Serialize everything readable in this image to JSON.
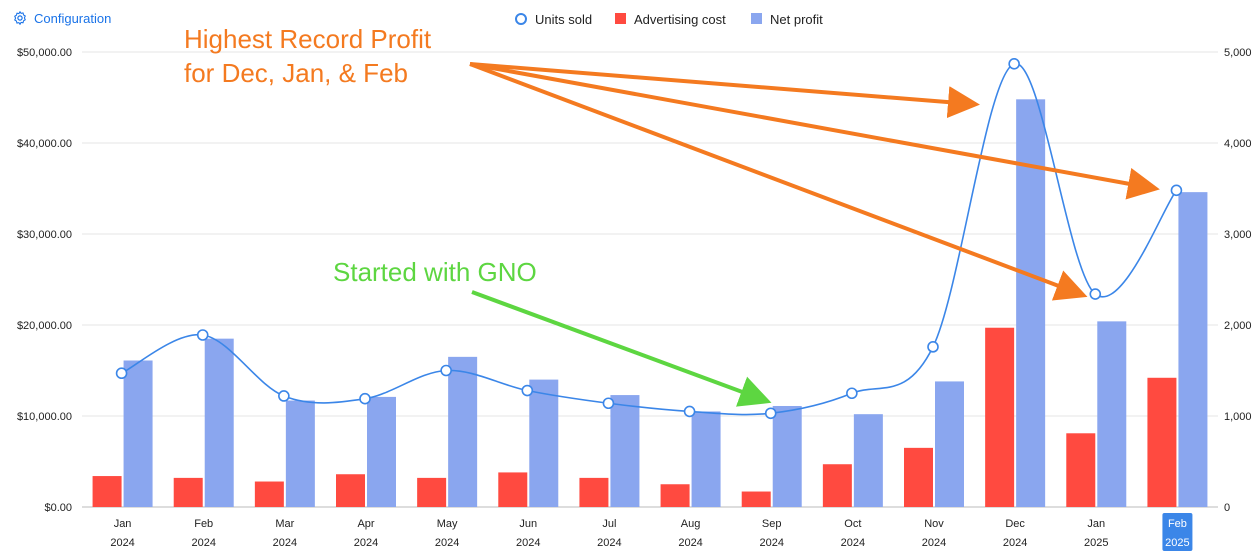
{
  "toolbar": {
    "config_label": "Configuration",
    "config_icon": "gear-icon"
  },
  "colors": {
    "units": "#3b86e8",
    "advertising": "#ff4a40",
    "profit": "#8aa6ef",
    "orange_annotation": "#f47a20",
    "green_annotation": "#5dd641",
    "selected_label_bg": "#3b86e8"
  },
  "annotations": {
    "orange_line1": "Highest Record Profit",
    "orange_line2": "for Dec, Jan, & Feb",
    "green": "Started with GNO"
  },
  "chart_data": {
    "type": "bar",
    "categories": [
      {
        "month": "Jan",
        "year": "2024"
      },
      {
        "month": "Feb",
        "year": "2024"
      },
      {
        "month": "Mar",
        "year": "2024"
      },
      {
        "month": "Apr",
        "year": "2024"
      },
      {
        "month": "May",
        "year": "2024"
      },
      {
        "month": "Jun",
        "year": "2024"
      },
      {
        "month": "Jul",
        "year": "2024"
      },
      {
        "month": "Aug",
        "year": "2024"
      },
      {
        "month": "Sep",
        "year": "2024"
      },
      {
        "month": "Oct",
        "year": "2024"
      },
      {
        "month": "Nov",
        "year": "2024"
      },
      {
        "month": "Dec",
        "year": "2024"
      },
      {
        "month": "Jan",
        "year": "2025"
      },
      {
        "month": "Feb",
        "year": "2025"
      }
    ],
    "selected_category_index": 13,
    "series": [
      {
        "name": "Advertising cost",
        "kind": "bar",
        "axis": "left",
        "values": [
          3400,
          3200,
          2800,
          3600,
          3200,
          3800,
          3200,
          2500,
          1700,
          4700,
          6500,
          19700,
          8100,
          14200
        ]
      },
      {
        "name": "Net profit",
        "kind": "bar",
        "axis": "left",
        "values": [
          16100,
          18500,
          11700,
          12100,
          16500,
          14000,
          12300,
          10500,
          11100,
          10200,
          13800,
          44800,
          20400,
          34600
        ]
      },
      {
        "name": "Units sold",
        "kind": "line",
        "axis": "right",
        "values": [
          1470,
          1890,
          1220,
          1190,
          1500,
          1280,
          1140,
          1050,
          1030,
          1250,
          1760,
          4870,
          2340,
          3480
        ]
      }
    ],
    "legend_order": [
      "Units sold",
      "Advertising cost",
      "Net profit"
    ],
    "legend_position": "top-center",
    "y_left": {
      "min": 0,
      "max": 50000,
      "ticks": [
        "$0.00",
        "$10,000.00",
        "$20,000.00",
        "$30,000.00",
        "$40,000.00",
        "$50,000.00"
      ]
    },
    "y_right": {
      "min": 0,
      "max": 5000,
      "ticks": [
        "0",
        "1,000",
        "2,000",
        "3,000",
        "4,000",
        "5,000"
      ]
    },
    "grid": true
  }
}
